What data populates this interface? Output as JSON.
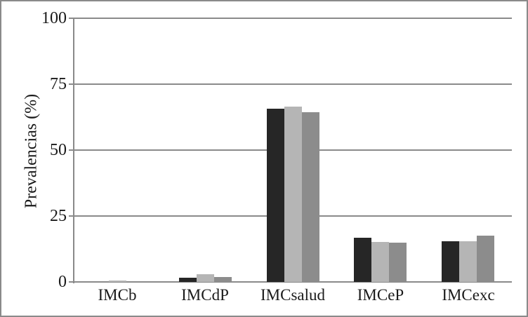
{
  "figure": {
    "background": "#ffffff",
    "border_color": "#8a8a8a",
    "axis_color": "#8a8a8a",
    "text_color": "#1a1a1a"
  },
  "chart_data": {
    "type": "bar",
    "title": "",
    "xlabel": "",
    "ylabel": "Prevalencias (%)",
    "ylim": [
      0,
      100
    ],
    "yticks": [
      0,
      25,
      50,
      75,
      100
    ],
    "grid": true,
    "legend_position": "none",
    "categories": [
      "IMCb",
      "IMCdP",
      "IMCsalud",
      "IMCeP",
      "IMCexc"
    ],
    "series": [
      {
        "name": "dark",
        "color": "#262626",
        "values": [
          0,
          1.5,
          65.8,
          16.7,
          15.5
        ]
      },
      {
        "name": "light-gray",
        "color": "#b5b5b5",
        "values": [
          0.5,
          2.8,
          66.4,
          15.2,
          15.3
        ]
      },
      {
        "name": "medium-gray",
        "color": "#8c8c8c",
        "values": [
          0,
          1.8,
          64.4,
          14.8,
          17.5
        ]
      }
    ]
  }
}
